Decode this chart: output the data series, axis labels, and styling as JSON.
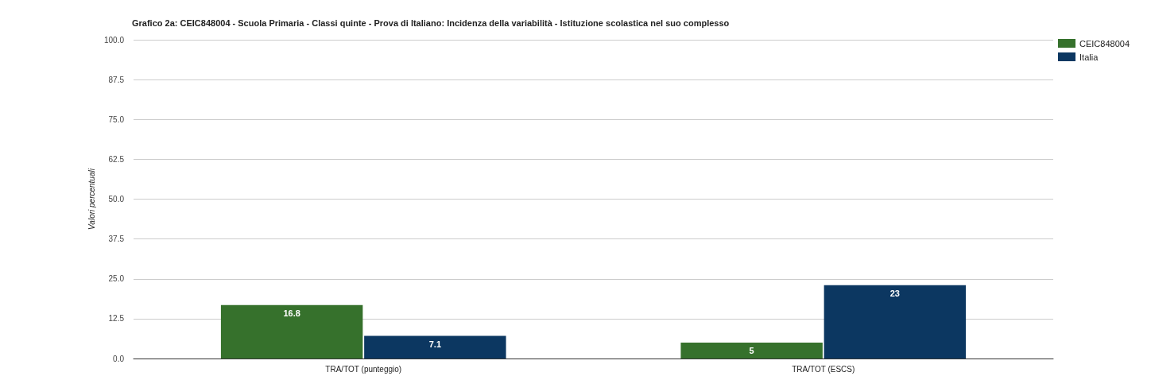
{
  "chart_data": {
    "type": "bar",
    "title": "Grafico 2a: CEIC848004 - Scuola Primaria - Classi quinte - Prova di Italiano: Incidenza della variabilità - Istituzione scolastica nel suo complesso",
    "ylabel": "Valori percentuali",
    "categories": [
      "TRA/TOT (punteggio)",
      "TRA/TOT (ESCS)"
    ],
    "series": [
      {
        "name": "CEIC848004",
        "color": "#36712c",
        "values": [
          16.8,
          5
        ]
      },
      {
        "name": "Italia",
        "color": "#0c3761",
        "values": [
          7.1,
          23
        ]
      }
    ],
    "ylim": [
      0,
      100
    ],
    "yticks": [
      {
        "value": 0,
        "label": "0.0"
      },
      {
        "value": 12.5,
        "label": "12.5"
      },
      {
        "value": 25,
        "label": "25.0"
      },
      {
        "value": 37.5,
        "label": "37.5"
      },
      {
        "value": 50,
        "label": "50.0"
      },
      {
        "value": 62.5,
        "label": "62.5"
      },
      {
        "value": 75,
        "label": "75.0"
      },
      {
        "value": 87.5,
        "label": "87.5"
      },
      {
        "value": 100,
        "label": "100.0"
      }
    ],
    "grid": "y",
    "legend": "top right",
    "data_labels": true
  }
}
